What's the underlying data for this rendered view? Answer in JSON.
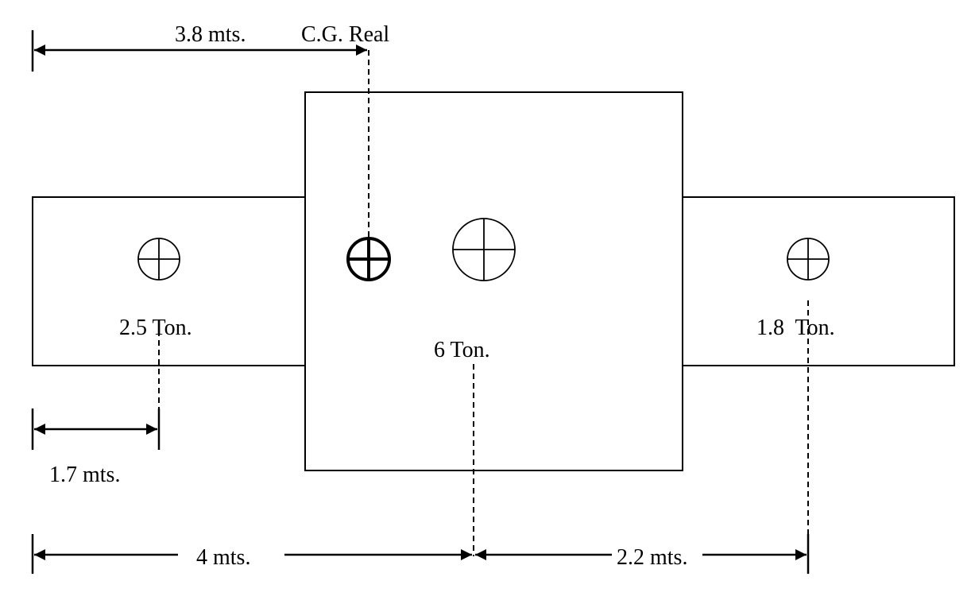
{
  "diagram": {
    "loads": {
      "left": "2.5 Ton.",
      "center": "6  Ton.",
      "right": "1.8  Ton."
    },
    "cg_label": "C.G. Real",
    "dimensions": {
      "cg_distance": "3.8 mts.",
      "left_load_distance": "1.7 mts.",
      "center_load_distance": "4 mts.",
      "right_load_span": "2.2 mts."
    }
  }
}
